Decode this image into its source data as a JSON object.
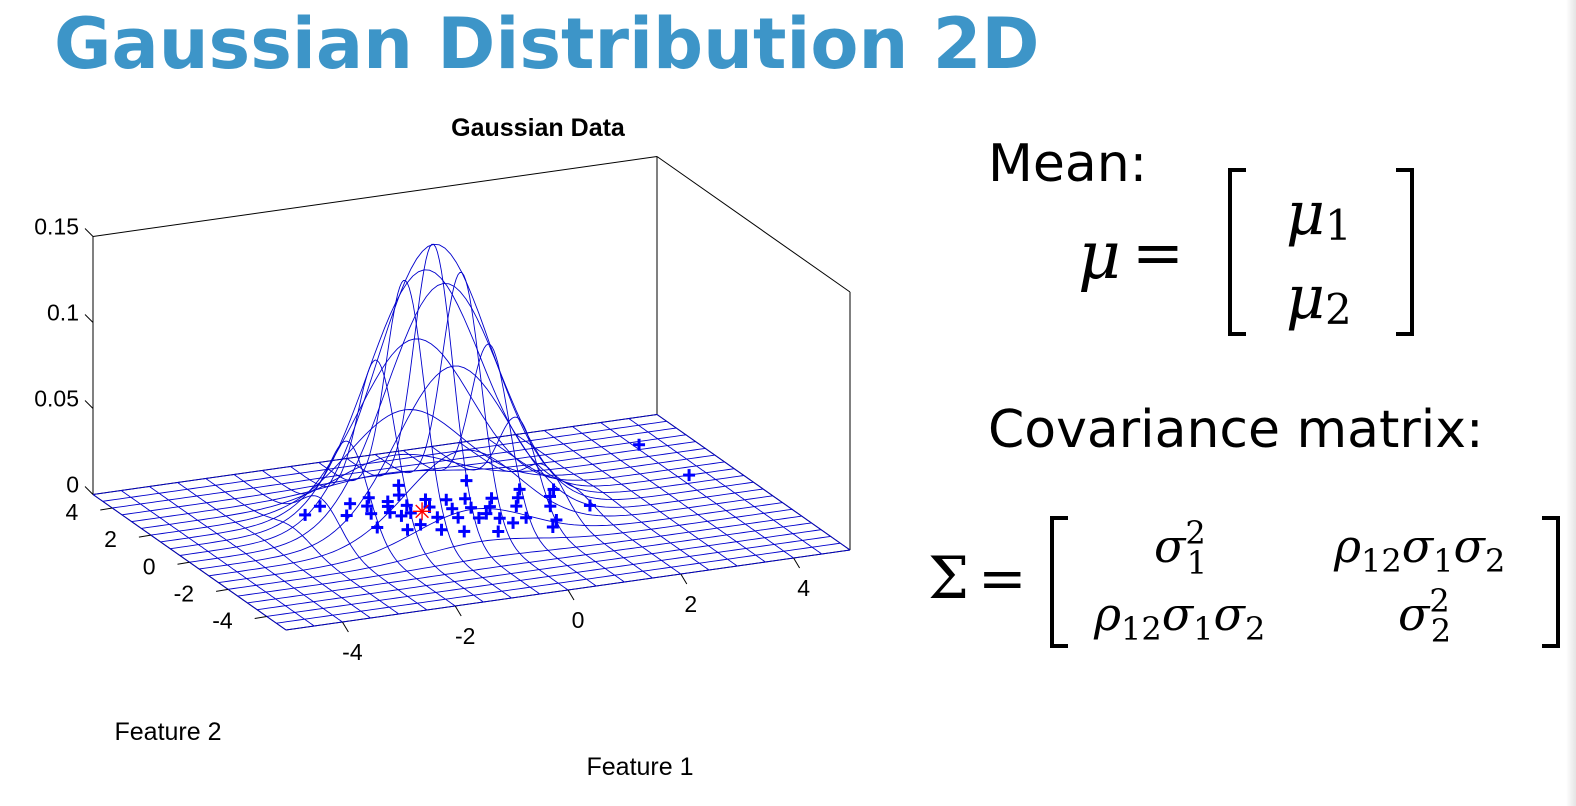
{
  "slide": {
    "title": "Gaussian Distribution 2D"
  },
  "chart_data": {
    "type": "surface-mesh-3d-with-scatter",
    "title": "Gaussian Data",
    "xlabel": "Feature 1",
    "ylabel": "Feature 2",
    "zlabel": "",
    "xlim": [
      -5,
      5
    ],
    "ylim": [
      -5,
      5
    ],
    "zlim": [
      0,
      0.15
    ],
    "x_ticks": [
      "-4",
      "-2",
      "0",
      "2",
      "4"
    ],
    "y_ticks": [
      "-4",
      "-2",
      "0",
      "2",
      "4"
    ],
    "z_ticks": [
      "0",
      "0.05",
      "0.1",
      "0.15"
    ],
    "surface": {
      "function": "bivariate normal density",
      "mean": [
        -0.5,
        0.5
      ],
      "sigma": [
        1.0,
        1.0
      ],
      "peak": 0.16,
      "grid_step": 0.5,
      "color": "#0000cc"
    },
    "scatter": {
      "marker": "+",
      "color": "#0000ff",
      "points": [
        [
          -1.9,
          2.3
        ],
        [
          -1.7,
          1.5
        ],
        [
          -1.4,
          2.2
        ],
        [
          -1.3,
          1.4
        ],
        [
          -1.2,
          1.9
        ],
        [
          -1.0,
          2.4
        ],
        [
          -1.0,
          1.3
        ],
        [
          -0.9,
          1.7
        ],
        [
          -0.8,
          2.0
        ],
        [
          -0.7,
          1.1
        ],
        [
          -0.6,
          1.6
        ],
        [
          -0.5,
          2.3
        ],
        [
          -0.4,
          0.6
        ],
        [
          -0.3,
          1.3
        ],
        [
          -0.2,
          1.8
        ],
        [
          -0.1,
          0.4
        ],
        [
          0.0,
          1.0
        ],
        [
          0.1,
          1.6
        ],
        [
          0.2,
          0.2
        ],
        [
          0.3,
          0.9
        ],
        [
          0.4,
          1.5
        ],
        [
          0.5,
          0.0
        ],
        [
          0.6,
          0.8
        ],
        [
          0.8,
          1.3
        ],
        [
          0.9,
          -0.2
        ],
        [
          1.0,
          0.6
        ],
        [
          1.2,
          1.1
        ],
        [
          1.3,
          -0.6
        ],
        [
          1.5,
          0.3
        ],
        [
          1.7,
          0.9
        ],
        [
          -1.5,
          0.5
        ],
        [
          -1.1,
          0.1
        ],
        [
          -0.8,
          0.3
        ],
        [
          -0.6,
          -0.2
        ],
        [
          -0.3,
          -0.5
        ],
        [
          0.2,
          -0.8
        ],
        [
          0.6,
          -0.4
        ],
        [
          1.1,
          -1.0
        ],
        [
          2.1,
          0.0
        ],
        [
          -0.3,
          2.9
        ],
        [
          0.8,
          2.6
        ],
        [
          4.1,
          3.3
        ],
        [
          4.2,
          1.0
        ],
        [
          -2.3,
          1.9
        ],
        [
          -0.9,
          1.0
        ],
        [
          0.4,
          0.4
        ],
        [
          1.4,
          1.6
        ],
        [
          1.9,
          1.3
        ]
      ]
    },
    "mean_marker": {
      "point": [
        -0.5,
        1.1
      ],
      "marker": "*",
      "color": "#ff0000"
    }
  },
  "formulas": {
    "mean_label": "Mean:",
    "covariance_label": "Covariance matrix:",
    "mu_symbol": "μ",
    "sigma_symbol": "Σ",
    "equals": "=",
    "mu_1": "μ",
    "mu_1_sub": "1",
    "mu_2": "μ",
    "mu_2_sub": "2",
    "cov_11_base": "σ",
    "cov_11_sub": "1",
    "cov_11_sup": "2",
    "cov_22_base": "σ",
    "cov_22_sub": "2",
    "cov_22_sup": "2",
    "rho": "ρ",
    "rho_sub": "12",
    "s": "σ",
    "s1_sub": "1",
    "s2_sub": "2"
  }
}
